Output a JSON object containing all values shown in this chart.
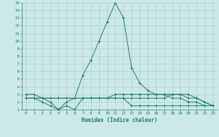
{
  "xlabel": "Humidex (Indice chaleur)",
  "background_color": "#cce8e8",
  "grid_color": "#aacece",
  "line_color": "#1a7a6e",
  "xlim": [
    -0.5,
    23.5
  ],
  "ylim": [
    1,
    15
  ],
  "xticks": [
    0,
    1,
    2,
    3,
    4,
    5,
    6,
    7,
    8,
    9,
    10,
    11,
    12,
    13,
    14,
    15,
    16,
    17,
    18,
    19,
    20,
    21,
    22,
    23
  ],
  "yticks": [
    1,
    2,
    3,
    4,
    5,
    6,
    7,
    8,
    9,
    10,
    11,
    12,
    13,
    14,
    15
  ],
  "series_x": [
    [
      0,
      1,
      2,
      3,
      4,
      5,
      6,
      7,
      8,
      9,
      10,
      11,
      12,
      13,
      14,
      15,
      16,
      17,
      18,
      19,
      20,
      21,
      22,
      23
    ],
    [
      0,
      1,
      2,
      3,
      4,
      5,
      6,
      7,
      8,
      9,
      10,
      11,
      12,
      13,
      14,
      15,
      16,
      17,
      18,
      19,
      20,
      21,
      22,
      23
    ],
    [
      0,
      1,
      2,
      3,
      4,
      5,
      6,
      7,
      8,
      9,
      10,
      11,
      12,
      13,
      14,
      15,
      16,
      17,
      18,
      19,
      20,
      21,
      22,
      23
    ],
    [
      0,
      1,
      2,
      3,
      4,
      5,
      6,
      7,
      8,
      9,
      10,
      11,
      12,
      13,
      14,
      15,
      16,
      17,
      18,
      19,
      20,
      21,
      22,
      23
    ]
  ],
  "series_y": [
    [
      3.0,
      3.0,
      2.5,
      2.0,
      1.0,
      2.0,
      2.5,
      5.5,
      7.5,
      10.0,
      12.5,
      15.0,
      13.0,
      6.5,
      4.5,
      3.5,
      3.0,
      3.0,
      2.5,
      2.5,
      2.0,
      2.0,
      1.5,
      1.5
    ],
    [
      2.5,
      2.5,
      2.5,
      2.5,
      2.5,
      2.5,
      2.5,
      2.5,
      2.5,
      2.5,
      2.5,
      2.5,
      2.5,
      2.5,
      2.5,
      2.5,
      2.5,
      2.5,
      3.0,
      3.0,
      3.0,
      2.5,
      2.0,
      1.5
    ],
    [
      2.5,
      2.5,
      2.0,
      1.5,
      1.0,
      1.5,
      1.0,
      2.5,
      2.5,
      2.5,
      2.5,
      2.5,
      2.5,
      1.5,
      1.5,
      1.5,
      1.5,
      1.5,
      1.5,
      1.5,
      1.5,
      1.5,
      1.5,
      1.5
    ],
    [
      2.5,
      2.5,
      2.5,
      2.5,
      2.5,
      2.5,
      2.5,
      2.5,
      2.5,
      2.5,
      2.5,
      3.0,
      3.0,
      3.0,
      3.0,
      3.0,
      3.0,
      3.0,
      3.0,
      3.0,
      2.5,
      2.5,
      2.0,
      1.5
    ]
  ]
}
